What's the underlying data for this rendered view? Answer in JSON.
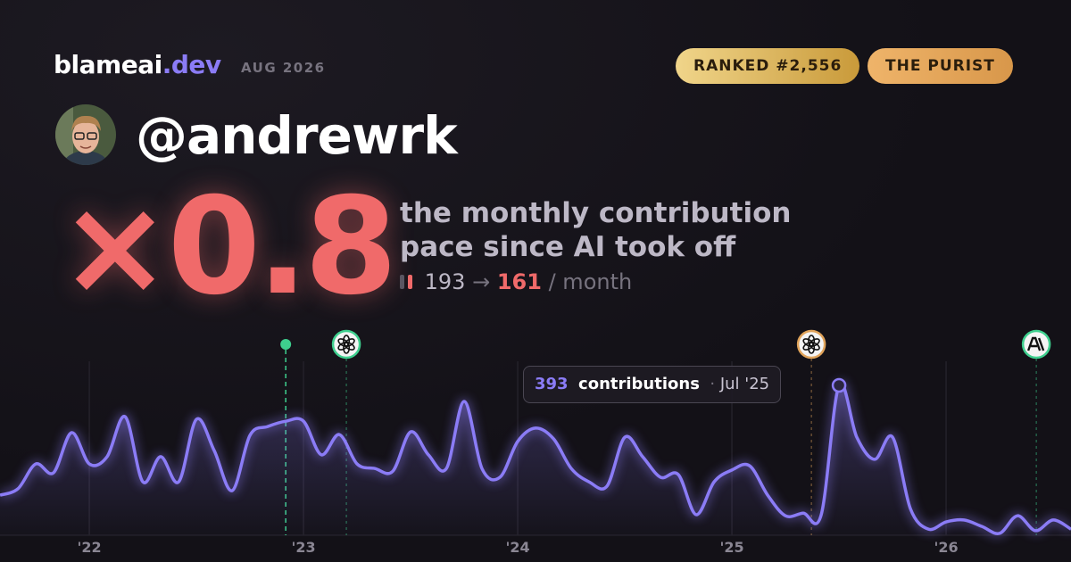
{
  "header": {
    "brand": "blameai",
    "brand_suffix": ".dev",
    "date": "AUG 2026",
    "badges": [
      "RANKED #2,556",
      "THE PURIST"
    ]
  },
  "profile": {
    "handle": "@andrewrk"
  },
  "hero": {
    "multiplier": "×0.8",
    "description": [
      "the monthly contribution",
      "pace since AI took off"
    ],
    "before": 193,
    "arrow": "→",
    "after": 161,
    "unit": "/ month"
  },
  "tooltip": {
    "label": "contributions",
    "date": "Jul '25"
  },
  "chart_data": {
    "type": "line",
    "x": [
      2021.583,
      2021.667,
      2021.75,
      2021.833,
      2021.917,
      2022,
      2022.083,
      2022.167,
      2022.25,
      2022.333,
      2022.417,
      2022.5,
      2022.583,
      2022.667,
      2022.75,
      2022.833,
      2022.917,
      2023,
      2023.083,
      2023.167,
      2023.25,
      2023.333,
      2023.417,
      2023.5,
      2023.583,
      2023.667,
      2023.75,
      2023.833,
      2023.917,
      2024,
      2024.083,
      2024.167,
      2024.25,
      2024.333,
      2024.417,
      2024.5,
      2024.583,
      2024.667,
      2024.75,
      2024.833,
      2024.917,
      2025,
      2025.083,
      2025.167,
      2025.25,
      2025.333,
      2025.417,
      2025.5,
      2025.583,
      2025.667,
      2025.75,
      2025.833,
      2025.917,
      2026,
      2026.083,
      2026.167,
      2026.25,
      2026.333,
      2026.417,
      2026.5,
      2026.583
    ],
    "series": [
      {
        "name": "contributions",
        "color": "#8b7cf6",
        "values": [
          105,
          122,
          187,
          164,
          269,
          187,
          206,
          311,
          140,
          206,
          140,
          304,
          222,
          117,
          262,
          285,
          299,
          299,
          211,
          264,
          187,
          175,
          168,
          271,
          211,
          175,
          351,
          175,
          152,
          246,
          281,
          253,
          175,
          140,
          129,
          257,
          206,
          152,
          159,
          54,
          140,
          171,
          182,
          105,
          51,
          58,
          54,
          393,
          257,
          199,
          257,
          70,
          16,
          35,
          40,
          23,
          5,
          51,
          12,
          40,
          16
        ]
      }
    ],
    "xlim": [
      2021.583,
      2026.583
    ],
    "ylim": [
      0,
      400
    ],
    "xticks": [
      {
        "value": 2022,
        "label": "'22"
      },
      {
        "value": 2023,
        "label": "'23"
      },
      {
        "value": 2024,
        "label": "'24"
      },
      {
        "value": 2025,
        "label": "'25"
      },
      {
        "value": 2026,
        "label": "'26"
      }
    ],
    "events": [
      {
        "x": 2022.917,
        "kind": "dot",
        "color": "#3ecf8e"
      },
      {
        "x": 2023.2,
        "kind": "openai",
        "color": "#3ecf8e"
      },
      {
        "x": 2025.371,
        "kind": "openai",
        "color": "#e0a35a"
      },
      {
        "x": 2026.421,
        "kind": "anthropic",
        "color": "#3ecf8e"
      }
    ],
    "highlight": 47,
    "grid": true
  }
}
